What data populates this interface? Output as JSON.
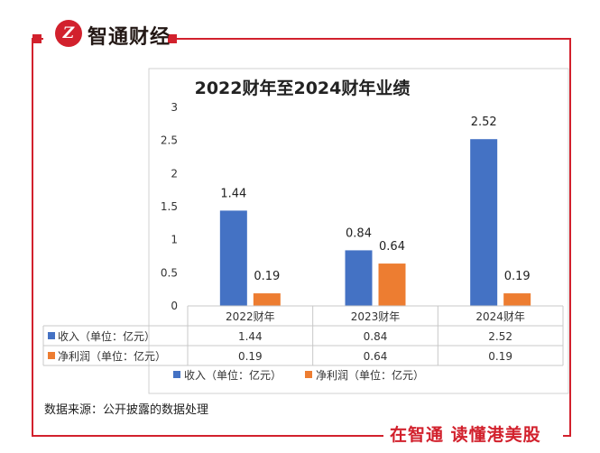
{
  "brand": {
    "logo_glyph": "Z",
    "name": "智通财经",
    "slogan": "在智通  读懂港美股",
    "accent": "#d2212d"
  },
  "source_note": "数据来源：公开披露的数据处理",
  "chart_data": {
    "type": "bar",
    "title": "2022财年至2024财年业绩",
    "categories": [
      "2022财年",
      "2023财年",
      "2024财年"
    ],
    "series": [
      {
        "name": "收入（单位：亿元）",
        "values": [
          1.44,
          0.84,
          2.52
        ],
        "labels": [
          "1.44",
          "0.84",
          "2.52"
        ],
        "color": "#4472c4"
      },
      {
        "name": "净利润（单位：亿元）",
        "values": [
          0.19,
          0.64,
          0.19
        ],
        "labels": [
          "0.19",
          "0.64",
          "0.19"
        ],
        "color": "#ed7d31"
      }
    ],
    "yticks": [
      "0",
      "0.5",
      "1",
      "1.5",
      "2",
      "2.5",
      "3"
    ],
    "ylim": [
      0,
      3
    ],
    "grid": false,
    "data_table": true,
    "legend_position": "bottom"
  }
}
